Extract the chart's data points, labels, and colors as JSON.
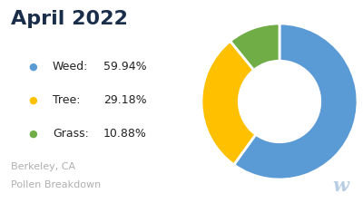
{
  "title": "April 2022",
  "title_color": "#1a2e4a",
  "title_fontsize": 16,
  "title_fontweight": "bold",
  "categories": [
    "Weed",
    "Tree",
    "Grass"
  ],
  "values": [
    59.94,
    29.18,
    10.88
  ],
  "colors": [
    "#5b9bd5",
    "#ffc000",
    "#70ad47"
  ],
  "legend_names": [
    "Weed",
    "Tree",
    "Grass"
  ],
  "legend_pcts": [
    "59.94%",
    "29.18%",
    "10.88%"
  ],
  "legend_dot_colors": [
    "#5b9bd5",
    "#ffc000",
    "#70ad47"
  ],
  "bottom_text_line1": "Berkeley, CA",
  "bottom_text_line2": "Pollen Breakdown",
  "bottom_text_color": "#b0b0b0",
  "background_color": "#ffffff",
  "startangle": 90
}
